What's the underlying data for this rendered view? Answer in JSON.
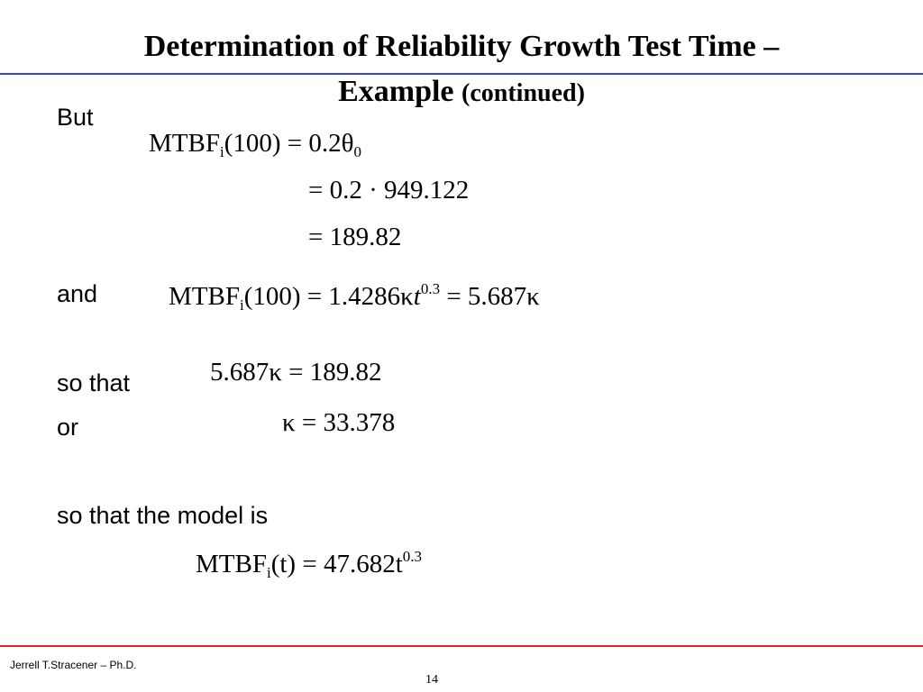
{
  "slide": {
    "title_line1": "Determination of Reliability Growth Test Time –",
    "title_line2_main": "Example",
    "title_line2_note": "(continued)",
    "labels": {
      "but": "But",
      "and": "and",
      "so_that": "so that",
      "or": "or",
      "model_intro": "so that the model is"
    },
    "eq1": {
      "lhs_main": "MTBF",
      "lhs_sub": "i",
      "lhs_arg": "(100)",
      "rhs": "= 0.2θ",
      "rhs_sub": "0"
    },
    "eq2": {
      "text": "= 0.2 · 949.122"
    },
    "eq3": {
      "text": "= 189.82"
    },
    "eq4": {
      "lhs_main": "MTBF",
      "lhs_sub": "i",
      "lhs_arg": "(100) = 1.4286κ",
      "t": "t",
      "exp": "0.3",
      "rhs": "= 5.687κ"
    },
    "eq5": {
      "text": "5.687κ = 189.82"
    },
    "eq6": {
      "text": "κ = 33.378"
    },
    "eq7": {
      "lhs_main": "MTBF",
      "lhs_sub": "i",
      "rhs": "(t) = 47.682t",
      "exp": "0.3"
    }
  },
  "footer": {
    "author": "Jerrell T.Stracener – Ph.D.",
    "page_number": "14"
  },
  "colors": {
    "top_rule": "#3a47c9",
    "bottom_rule": "#d9262b"
  }
}
